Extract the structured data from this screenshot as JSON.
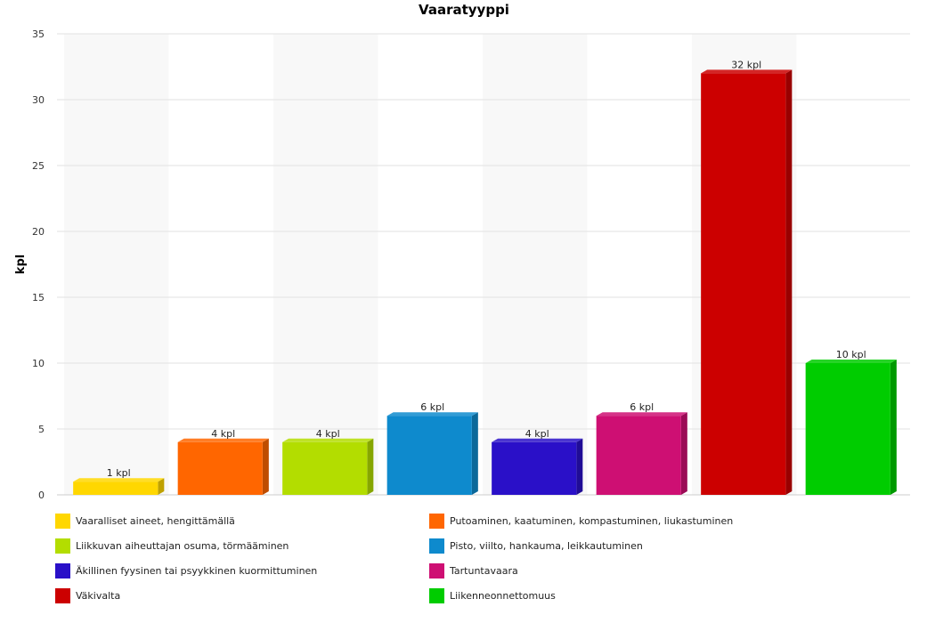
{
  "chart_data": {
    "type": "bar",
    "title": "Vaaratyyppi",
    "ylabel": "kpl",
    "xlabel": "",
    "ylim": [
      0,
      35
    ],
    "yticks": [
      0,
      5,
      10,
      15,
      20,
      25,
      30,
      35
    ],
    "value_suffix": " kpl",
    "legend_position": "bottom",
    "categories": [
      "Vaaralliset aineet, hengittämällä",
      "Putoaminen, kaatuminen, kompastuminen, liukastuminen",
      "Liikkuvan aiheuttajan osuma, törmääminen",
      "Pisto, viilto, hankauma, leikkautuminen",
      "Äkillinen fyysinen tai psyykkinen kuormittuminen",
      "Tartuntavaara",
      "Väkivalta",
      "Liikenneonnettomuus"
    ],
    "values": [
      1,
      4,
      4,
      6,
      4,
      6,
      32,
      10
    ],
    "data_labels": [
      "1 kpl",
      "4 kpl",
      "4 kpl",
      "6 kpl",
      "4 kpl",
      "6 kpl",
      "32 kpl",
      "10 kpl"
    ],
    "colors": [
      "#FFD700",
      "#FF6600",
      "#B3DD00",
      "#0E8ACD",
      "#2A10C8",
      "#CE0F73",
      "#CC0000",
      "#00CC00"
    ]
  }
}
